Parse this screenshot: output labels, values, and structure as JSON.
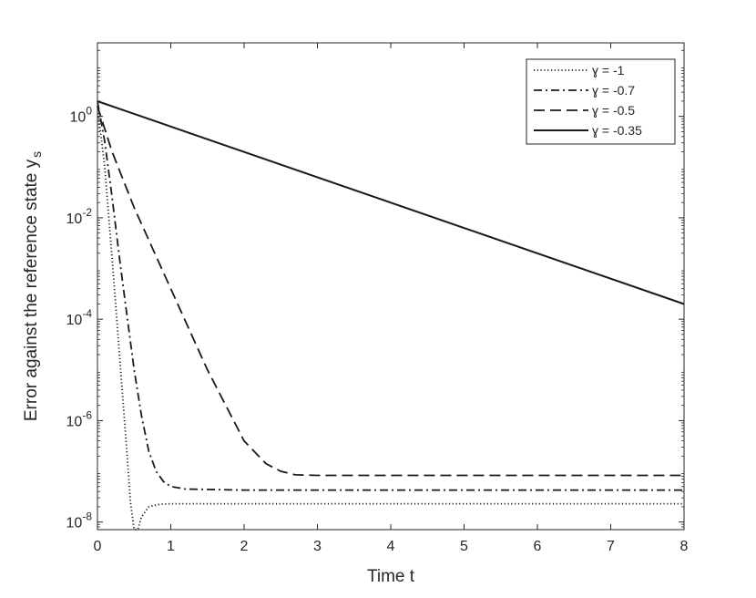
{
  "chart_data": {
    "type": "line",
    "title": "",
    "xlabel": "Time t",
    "ylabel_main": "Error against the reference state y",
    "ylabel_sub": "s",
    "xlim": [
      0,
      8
    ],
    "ylim_log10": [
      -8.15,
      1.45
    ],
    "y_scale": "log",
    "grid": false,
    "legend_position": "top-right",
    "x_ticks": [
      0,
      1,
      2,
      3,
      4,
      5,
      6,
      7,
      8
    ],
    "y_ticks_exponents": [
      -8,
      -6,
      -4,
      -2,
      0
    ],
    "y_tick_base": "10",
    "series": [
      {
        "name": "ɣ = -1",
        "style": "dotted",
        "points": [
          [
            0,
            0.2
          ],
          [
            0.1,
            -1.0
          ],
          [
            0.2,
            -2.8
          ],
          [
            0.3,
            -4.7
          ],
          [
            0.4,
            -6.6
          ],
          [
            0.45,
            -7.6
          ],
          [
            0.5,
            -8.15
          ],
          [
            0.55,
            -8.15
          ],
          [
            0.6,
            -7.9
          ],
          [
            0.7,
            -7.7
          ],
          [
            0.85,
            -7.65
          ],
          [
            1.0,
            -7.64
          ],
          [
            2,
            -7.64
          ],
          [
            4,
            -7.64
          ],
          [
            6,
            -7.64
          ],
          [
            8,
            -7.64
          ]
        ]
      },
      {
        "name": "ɣ = -0.7",
        "style": "dashdot",
        "points": [
          [
            0,
            0.3
          ],
          [
            0.1,
            -0.5
          ],
          [
            0.2,
            -1.6
          ],
          [
            0.3,
            -2.8
          ],
          [
            0.4,
            -3.9
          ],
          [
            0.5,
            -5.0
          ],
          [
            0.6,
            -5.9
          ],
          [
            0.7,
            -6.6
          ],
          [
            0.8,
            -7.0
          ],
          [
            0.9,
            -7.2
          ],
          [
            1.0,
            -7.3
          ],
          [
            1.2,
            -7.35
          ],
          [
            2,
            -7.37
          ],
          [
            4,
            -7.37
          ],
          [
            6,
            -7.37
          ],
          [
            8,
            -7.37
          ]
        ]
      },
      {
        "name": "ɣ = -0.5",
        "style": "dashed",
        "points": [
          [
            0,
            0.2
          ],
          [
            0.2,
            -0.7
          ],
          [
            0.5,
            -1.8
          ],
          [
            1.0,
            -3.4
          ],
          [
            1.5,
            -5.0
          ],
          [
            2.0,
            -6.4
          ],
          [
            2.3,
            -6.85
          ],
          [
            2.5,
            -7.0
          ],
          [
            2.7,
            -7.07
          ],
          [
            3.0,
            -7.08
          ],
          [
            4,
            -7.08
          ],
          [
            6,
            -7.08
          ],
          [
            8,
            -7.08
          ]
        ]
      },
      {
        "name": "ɣ = -0.35",
        "style": "solid",
        "points": [
          [
            0,
            0.3
          ],
          [
            8,
            -3.7
          ]
        ]
      }
    ]
  }
}
